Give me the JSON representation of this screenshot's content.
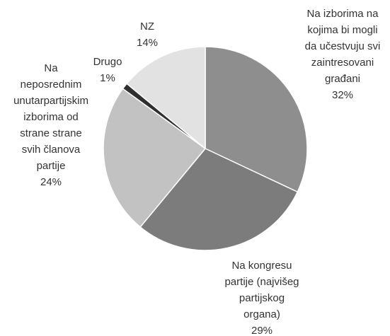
{
  "chart_data": {
    "type": "pie",
    "categories": [
      "Na izborima na\nkojima bi mogli\nda učestvuju svi\nzaintresovani\ngrađani",
      "Na kongresu\npartije (najvišeg\npartijskog\norgana)",
      "Na\nneposrednim\nunutarpartijskim\nizborima od\nstrane strane\nsvih članova\npartije",
      "Drugo",
      "NZ"
    ],
    "values": [
      32,
      29,
      24,
      1,
      14
    ],
    "value_labels": [
      "32%",
      "29%",
      "24%",
      "1%",
      "14%"
    ],
    "colors": [
      "#8e8e8e",
      "#7c7c7c",
      "#c2c2c2",
      "#2f2f2f",
      "#e2e2e2"
    ]
  }
}
